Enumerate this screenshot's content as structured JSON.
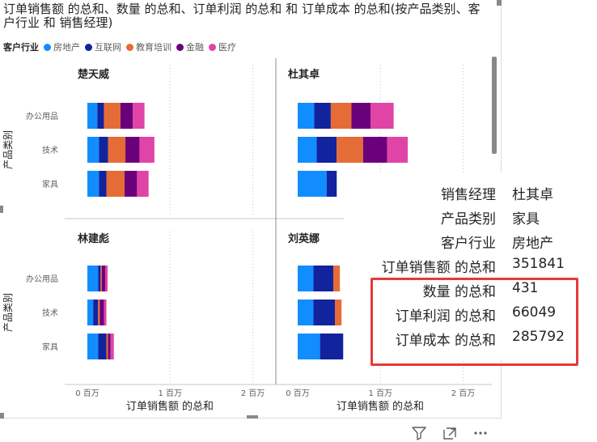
{
  "title": "订单销售额 的总和、数量 的总和、订单利润 的总和 和 订单成本 的总和(按产品类别、客户行业 和 销售经理)",
  "legend": {
    "title": "客户行业",
    "items": [
      {
        "label": "房地产",
        "color": "#118DFF"
      },
      {
        "label": "互联网",
        "color": "#12239E"
      },
      {
        "label": "教育培训",
        "color": "#E66C37"
      },
      {
        "label": "金融",
        "color": "#6B007B"
      },
      {
        "label": "医疗",
        "color": "#E044A7"
      }
    ]
  },
  "chart_data": {
    "type": "bar",
    "orientation": "horizontal",
    "stacked": true,
    "small_multiples_by": "销售经理",
    "categories": [
      "办公用品",
      "技术",
      "家具"
    ],
    "xlabel": "订单销售额 的总和",
    "ylabel": "产品类别",
    "x_ticks": [
      "0 百万",
      "1 百万",
      "2 百万"
    ],
    "xlim": [
      0,
      2000000
    ],
    "grid": "vertical dotted",
    "panels": [
      {
        "manager": "楚天威",
        "series": [
          {
            "name": "房地产",
            "values": [
              120000,
              140000,
              140000
            ]
          },
          {
            "name": "互联网",
            "values": [
              80000,
              110000,
              90000
            ]
          },
          {
            "name": "教育培训",
            "values": [
              200000,
              210000,
              220000
            ]
          },
          {
            "name": "金融",
            "values": [
              150000,
              170000,
              150000
            ]
          },
          {
            "name": "医疗",
            "values": [
              140000,
              180000,
              140000
            ]
          }
        ]
      },
      {
        "manager": "杜其卓",
        "series": [
          {
            "name": "房地产",
            "values": [
              200000,
              230000,
              351841
            ]
          },
          {
            "name": "互联网",
            "values": [
              200000,
              240000,
              120000
            ]
          },
          {
            "name": "教育培训",
            "values": [
              250000,
              320000,
              0
            ]
          },
          {
            "name": "金融",
            "values": [
              230000,
              290000,
              0
            ]
          },
          {
            "name": "医疗",
            "values": [
              280000,
              250000,
              0
            ]
          }
        ]
      },
      {
        "manager": "林建彪",
        "series": [
          {
            "name": "房地产",
            "values": [
              130000,
              70000,
              130000
            ]
          },
          {
            "name": "互联网",
            "values": [
              30000,
              60000,
              100000
            ]
          },
          {
            "name": "教育培训",
            "values": [
              15000,
              20000,
              20000
            ]
          },
          {
            "name": "金融",
            "values": [
              40000,
              50000,
              30000
            ]
          },
          {
            "name": "医疗",
            "values": [
              30000,
              30000,
              40000
            ]
          }
        ]
      },
      {
        "manager": "刘英娜",
        "series": [
          {
            "name": "房地产",
            "values": [
              190000,
              190000,
              270000
            ]
          },
          {
            "name": "互联网",
            "values": [
              240000,
              260000,
              280000
            ]
          },
          {
            "name": "教育培训",
            "values": [
              80000,
              80000,
              0
            ]
          },
          {
            "name": "金融",
            "values": [
              0,
              0,
              0
            ]
          },
          {
            "name": "医疗",
            "values": [
              0,
              0,
              0
            ]
          }
        ]
      }
    ]
  },
  "tooltip": {
    "rows": [
      {
        "key": "销售经理",
        "value": "杜其卓"
      },
      {
        "key": "产品类别",
        "value": "家具"
      },
      {
        "key": "客户行业",
        "value": "房地产"
      },
      {
        "key": "订单销售额 的总和",
        "value": "351841"
      },
      {
        "key": "数量 的总和",
        "value": "431"
      },
      {
        "key": "订单利润 的总和",
        "value": "66049"
      },
      {
        "key": "订单成本 的总和",
        "value": "285792"
      }
    ]
  },
  "colors": {
    "highlight": "#e53a3a"
  },
  "actions": [
    {
      "icon": "filter-icon"
    },
    {
      "icon": "focus-mode-icon"
    },
    {
      "icon": "more-options-icon"
    }
  ]
}
